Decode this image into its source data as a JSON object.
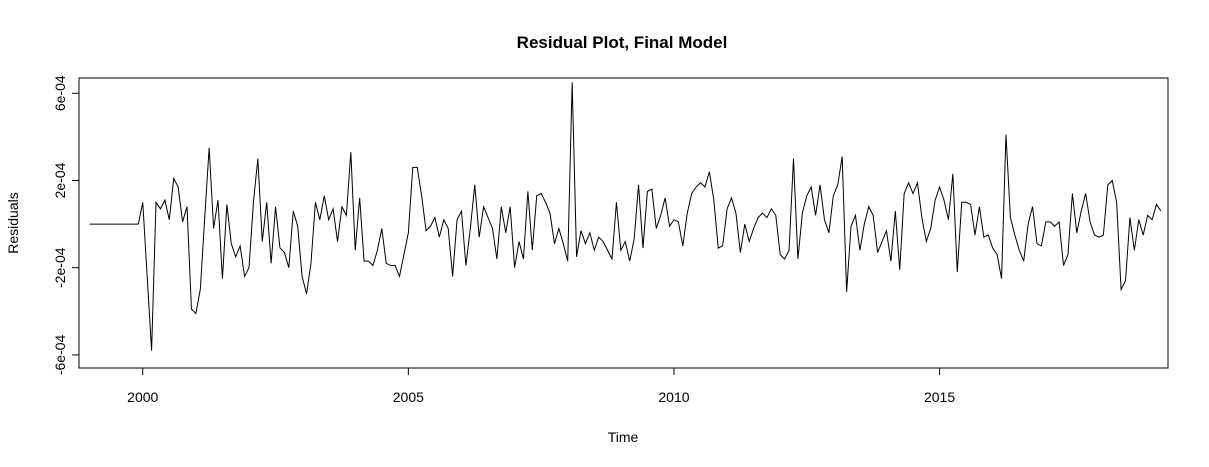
{
  "chart_data": {
    "type": "line",
    "title": "Residual Plot, Final Model",
    "xlabel": "Time",
    "ylabel": "Residuals",
    "xlim": [
      1998.8,
      2019.3
    ],
    "ylim": [
      -0.00066,
      0.00067
    ],
    "x_ticks": [
      2000,
      2005,
      2010,
      2015
    ],
    "x_tick_labels": [
      "2000",
      "2005",
      "2010",
      "2015"
    ],
    "y_ticks": [
      -0.0006,
      -0.0002,
      0.0002,
      0.0006
    ],
    "y_tick_labels": [
      "-6e-04",
      "-2e-04",
      "2e-04",
      "6e-04"
    ],
    "grid": false,
    "series": [
      {
        "start": 1999.0,
        "frequency": 12,
        "color": "#000000",
        "values": [
          0,
          0,
          0,
          0,
          0,
          0,
          0,
          0,
          0,
          0,
          0,
          0,
          0.0001,
          -0.00024,
          -0.00058,
          0.0001,
          7e-05,
          0.00011,
          2e-05,
          0.00021,
          0.00017,
          1e-05,
          8e-05,
          -0.00039,
          -0.00041,
          -0.0003,
          3e-05,
          0.00035,
          -2e-05,
          0.00011,
          -0.00025,
          9e-05,
          -9e-05,
          -0.00015,
          -0.0001,
          -0.00024,
          -0.0002,
          0.0001,
          0.0003,
          -8e-05,
          0.0001,
          -0.00018,
          8e-05,
          -0.00011,
          -0.00013,
          -0.0002,
          6e-05,
          -1e-05,
          -0.00024,
          -0.00032,
          -0.00018,
          0.0001,
          2e-05,
          0.00013,
          2e-05,
          7e-05,
          -8e-05,
          8e-05,
          4e-05,
          0.00033,
          -0.00012,
          0.00012,
          -0.00017,
          -0.00017,
          -0.00019,
          -0.00012,
          -2e-05,
          -0.00018,
          -0.00019,
          -0.00019,
          -0.00024,
          -0.00014,
          -4e-05,
          0.00026,
          0.00026,
          0.00013,
          -3e-05,
          -1e-05,
          3e-05,
          -6e-05,
          2e-05,
          -2e-05,
          -0.00024,
          2e-05,
          6e-05,
          -0.00019,
          -2e-05,
          0.00018,
          -6e-05,
          8e-05,
          3e-05,
          -2e-05,
          -0.00016,
          8e-05,
          -4e-05,
          8e-05,
          -0.0002,
          -8e-05,
          -0.00016,
          0.00015,
          -0.00012,
          0.00013,
          0.00014,
          0.0001,
          5e-05,
          -9e-05,
          -2e-05,
          -9e-05,
          -0.00017,
          0.00065,
          -0.00015,
          -3e-05,
          -9e-05,
          -4e-05,
          -0.00012,
          -6e-05,
          -8e-05,
          -0.00012,
          -0.00016,
          0.0001,
          -0.00012,
          -8e-05,
          -0.00017,
          -7e-05,
          0.00018,
          -0.00011,
          0.00015,
          0.00016,
          -2e-05,
          4e-05,
          0.00012,
          -1e-05,
          2e-05,
          1e-05,
          -0.0001,
          5e-05,
          0.00014,
          0.00017,
          0.00019,
          0.00017,
          0.00024,
          0.00011,
          -0.00011,
          -0.0001,
          7e-05,
          0.00012,
          5e-05,
          -0.00013,
          0,
          -8e-05,
          -2e-05,
          3e-05,
          5e-05,
          3e-05,
          7e-05,
          4e-05,
          -0.00014,
          -0.00016,
          -0.00012,
          0.0003,
          -0.00016,
          5e-05,
          0.00013,
          0.00017,
          4e-05,
          0.00018,
          2e-05,
          -4e-05,
          0.00013,
          0.00018,
          0.00031,
          -0.00031,
          -1e-05,
          4e-05,
          -0.00012,
          0,
          8e-05,
          4e-05,
          -0.00013,
          -8e-05,
          -3e-05,
          -0.00017,
          6e-05,
          -0.00021,
          0.00014,
          0.00019,
          0.00014,
          0.00019,
          3e-05,
          -8e-05,
          -2e-05,
          0.00011,
          0.00017,
          0.00011,
          2e-05,
          0.00023,
          -0.00022,
          0.0001,
          0.0001,
          9e-05,
          -5e-05,
          8e-05,
          -6e-05,
          -5e-05,
          -0.00011,
          -0.00014,
          -0.00025,
          0.00041,
          3e-05,
          -5e-05,
          -0.00012,
          -0.00017,
          0,
          8e-05,
          -9e-05,
          -0.0001,
          1e-05,
          1e-05,
          -1e-05,
          1e-05,
          -0.00019,
          -0.00014,
          0.00014,
          -4e-05,
          6e-05,
          0.00014,
          1e-05,
          -5e-05,
          -6e-05,
          -5e-05,
          0.00018,
          0.0002,
          0.0001,
          -0.0003,
          -0.00026,
          3e-05,
          -0.00012,
          2e-05,
          -5e-05,
          4e-05,
          2e-05,
          9e-05,
          6e-05
        ]
      }
    ]
  }
}
